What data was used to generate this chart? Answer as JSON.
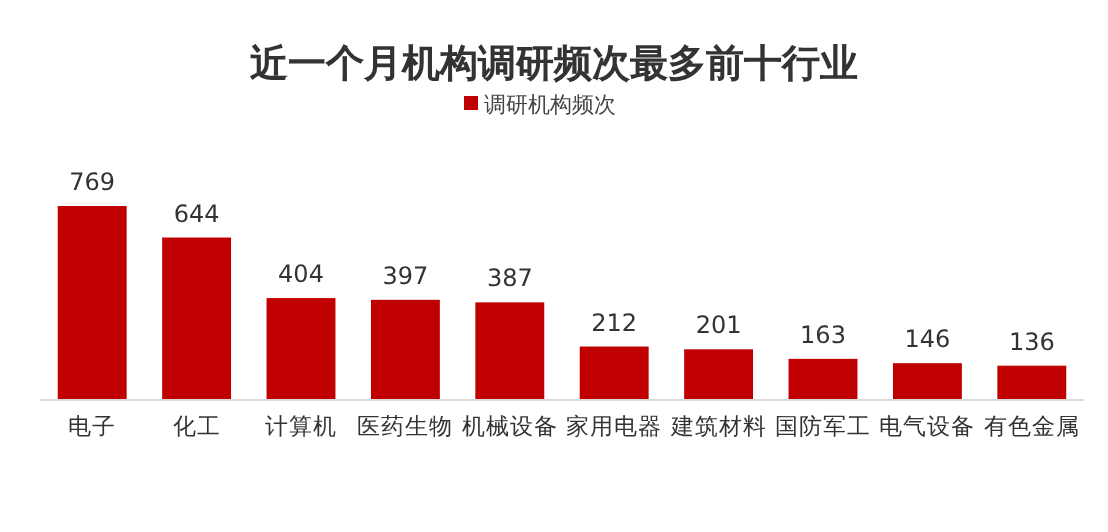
{
  "chart_data": {
    "type": "bar",
    "title": "近一个月机构调研频次最多前十行业",
    "categories": [
      "电子",
      "化工",
      "计算机",
      "医药生物",
      "机械设备",
      "家用电器",
      "建筑材料",
      "国防军工",
      "电气设备",
      "有色金属"
    ],
    "series": [
      {
        "name": "调研机构频次",
        "color": "#c00000",
        "values": [
          769,
          644,
          404,
          397,
          387,
          212,
          201,
          163,
          146,
          136
        ]
      }
    ],
    "data_labels": true,
    "legend": "top"
  }
}
